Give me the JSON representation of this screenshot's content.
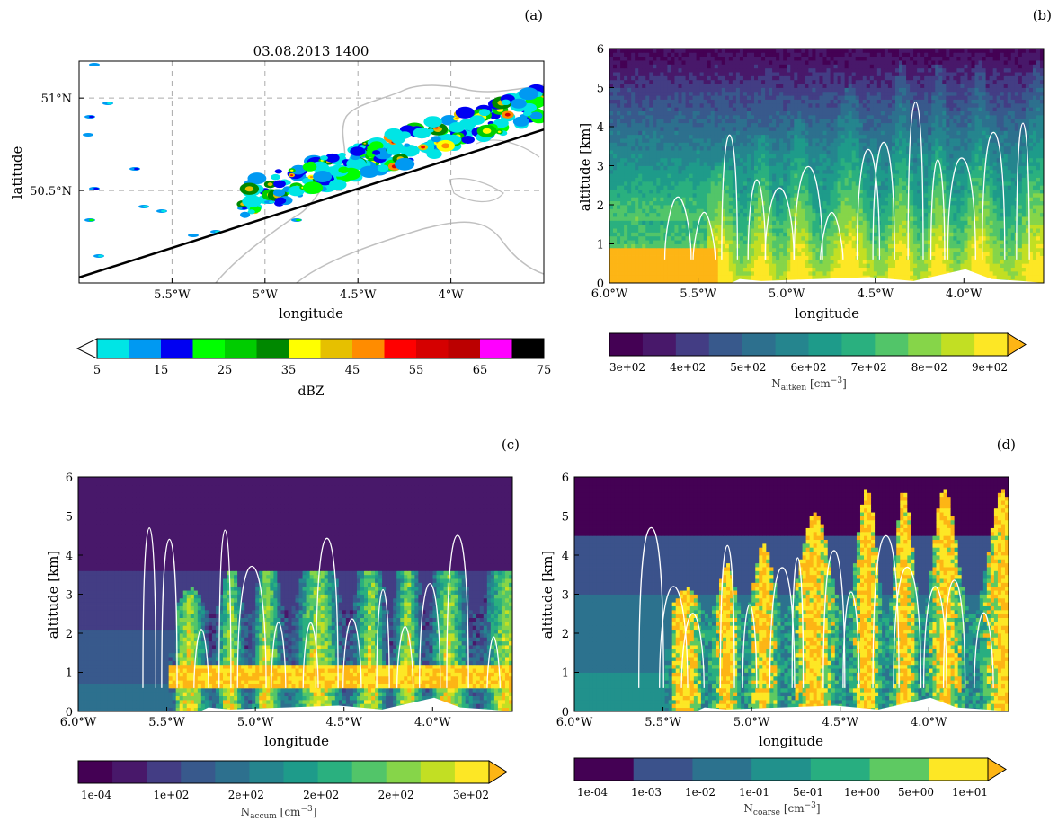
{
  "panels": {
    "a": {
      "label": "(a)",
      "title": "03.08.2013 1400",
      "xlabel": "longitude",
      "ylabel": "latitude",
      "colorbar_label": "dBZ",
      "colorbar_ticks": [
        "5",
        "15",
        "25",
        "35",
        "45",
        "55",
        "65",
        "75"
      ]
    },
    "b": {
      "label": "(b)",
      "xlabel": "longitude",
      "ylabel": "altitude [km]",
      "colorbar_label": "N",
      "colorbar_label_sub": "aitken",
      "colorbar_label_unit": " [cm",
      "colorbar_label_sup": "−3",
      "colorbar_label_close": "]",
      "colorbar_ticks": [
        "3e+02",
        "4e+02",
        "5e+02",
        "6e+02",
        "7e+02",
        "8e+02",
        "9e+02"
      ]
    },
    "c": {
      "label": "(c)",
      "xlabel": "longitude",
      "ylabel": "altitude [km]",
      "colorbar_label": "N",
      "colorbar_label_sub": "accum",
      "colorbar_label_unit": " [cm",
      "colorbar_label_sup": "−3",
      "colorbar_label_close": "]",
      "colorbar_ticks": [
        "1e-04",
        "1e+02",
        "2e+02",
        "2e+02",
        "2e+02",
        "3e+02"
      ]
    },
    "d": {
      "label": "(d)",
      "xlabel": "longitude",
      "ylabel": "altitude [km]",
      "colorbar_label": "N",
      "colorbar_label_sub": "coarse",
      "colorbar_label_unit": " [cm",
      "colorbar_label_sup": "−3",
      "colorbar_label_close": "]",
      "colorbar_ticks": [
        "1e-04",
        "1e-03",
        "1e-02",
        "1e-01",
        "5e-01",
        "1e+00",
        "5e+00",
        "1e+01"
      ]
    }
  },
  "chart_data": [
    {
      "type": "heatmap",
      "panel": "a",
      "title": "03.08.2013 1400",
      "xlabel": "longitude",
      "ylabel": "latitude",
      "xlim": [
        -6.0,
        -3.5
      ],
      "ylim": [
        50.0,
        51.2
      ],
      "xticks": [
        {
          "value": -5.5,
          "label": "5.5°W"
        },
        {
          "value": -5.0,
          "label": "5°W"
        },
        {
          "value": -4.5,
          "label": "4.5°W"
        },
        {
          "value": -4.0,
          "label": "4°W"
        }
      ],
      "yticks": [
        {
          "value": 50.5,
          "label": "50.5°N"
        },
        {
          "value": 51.0,
          "label": "51°N"
        }
      ],
      "grid": true,
      "transect": {
        "from": [
          -6.0,
          50.03
        ],
        "to": [
          -3.5,
          50.83
        ]
      },
      "colorbar": {
        "label": "dBZ",
        "bounds": [
          5,
          10,
          15,
          20,
          25,
          30,
          35,
          40,
          45,
          50,
          55,
          60,
          65,
          70,
          75
        ],
        "colors": [
          "#00e5e5",
          "#0099f2",
          "#0000f2",
          "#00ff00",
          "#00cc00",
          "#008800",
          "#ffff00",
          "#e6c000",
          "#ff8c00",
          "#ff0000",
          "#d50000",
          "#bb0000",
          "#ff00ff",
          "#000000"
        ],
        "extend": "min"
      }
    },
    {
      "type": "heatmap",
      "panel": "b",
      "xlabel": "longitude",
      "ylabel": "altitude [km]",
      "xlim": [
        -6.0,
        -3.55
      ],
      "ylim": [
        0,
        6
      ],
      "xticks": [
        {
          "value": -6.0,
          "label": "6.0°W"
        },
        {
          "value": -5.5,
          "label": "5.5°W"
        },
        {
          "value": -5.0,
          "label": "5.0°W"
        },
        {
          "value": -4.5,
          "label": "4.5°W"
        },
        {
          "value": -4.0,
          "label": "4.0°W"
        }
      ],
      "yticks": [
        0,
        1,
        2,
        3,
        4,
        5,
        6
      ],
      "colorbar": {
        "label": "N_aitken [cm^-3]",
        "ticks": [
          "3e+02",
          "4e+02",
          "5e+02",
          "6e+02",
          "7e+02",
          "8e+02",
          "9e+02"
        ],
        "colors": [
          "#440154",
          "#48186a",
          "#433d84",
          "#38598c",
          "#2d708e",
          "#25858e",
          "#1e9b8a",
          "#2ab07f",
          "#52c569",
          "#86d549",
          "#c2df23",
          "#fde725"
        ],
        "extend": "max",
        "extend_color": "#fdb515"
      }
    },
    {
      "type": "heatmap",
      "panel": "c",
      "xlabel": "longitude",
      "ylabel": "altitude [km]",
      "xlim": [
        -6.0,
        -3.55
      ],
      "ylim": [
        0,
        6
      ],
      "xticks": [
        {
          "value": -6.0,
          "label": "6.0°W"
        },
        {
          "value": -5.5,
          "label": "5.5°W"
        },
        {
          "value": -5.0,
          "label": "5.0°W"
        },
        {
          "value": -4.5,
          "label": "4.5°W"
        },
        {
          "value": -4.0,
          "label": "4.0°W"
        }
      ],
      "yticks": [
        0,
        1,
        2,
        3,
        4,
        5,
        6
      ],
      "colorbar": {
        "label": "N_accum [cm^-3]",
        "ticks": [
          "1e-04",
          "1e+02",
          "2e+02",
          "2e+02",
          "2e+02",
          "3e+02"
        ],
        "colors": [
          "#440154",
          "#48186a",
          "#433d84",
          "#38598c",
          "#2d708e",
          "#25858e",
          "#1e9b8a",
          "#2ab07f",
          "#52c569",
          "#86d549",
          "#c2df23",
          "#fde725"
        ],
        "extend": "max",
        "extend_color": "#fdb515"
      }
    },
    {
      "type": "heatmap",
      "panel": "d",
      "xlabel": "longitude",
      "ylabel": "altitude [km]",
      "xlim": [
        -6.0,
        -3.55
      ],
      "ylim": [
        0,
        6
      ],
      "xticks": [
        {
          "value": -6.0,
          "label": "6.0°W"
        },
        {
          "value": -5.5,
          "label": "5.5°W"
        },
        {
          "value": -5.0,
          "label": "5.0°W"
        },
        {
          "value": -4.5,
          "label": "4.5°W"
        },
        {
          "value": -4.0,
          "label": "4.0°W"
        }
      ],
      "yticks": [
        0,
        1,
        2,
        3,
        4,
        5,
        6
      ],
      "colorbar": {
        "label": "N_coarse [cm^-3]",
        "ticks": [
          "1e-04",
          "1e-03",
          "1e-02",
          "1e-01",
          "5e-01",
          "1e+00",
          "5e+00",
          "1e+01"
        ],
        "colors": [
          "#440154",
          "#3b528b",
          "#2c728e",
          "#21918c",
          "#28ae80",
          "#5ec962",
          "#fde725"
        ],
        "extend": "max",
        "extend_color": "#fdb515"
      }
    }
  ]
}
